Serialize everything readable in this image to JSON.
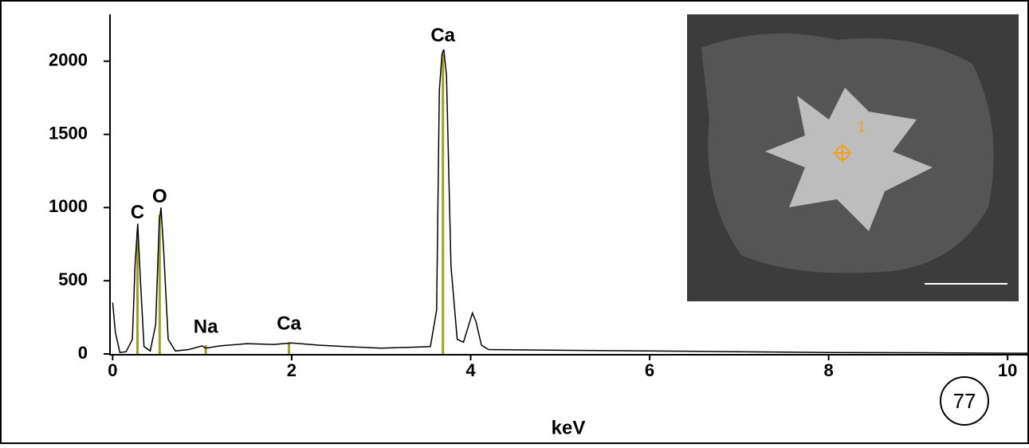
{
  "chart_data": {
    "type": "line",
    "x_label": "keV",
    "x": [
      0,
      0.03,
      0.08,
      0.15,
      0.22,
      0.25,
      0.28,
      0.31,
      0.35,
      0.42,
      0.48,
      0.52,
      0.54,
      0.57,
      0.62,
      0.7,
      0.85,
      1.0,
      1.04,
      1.2,
      1.5,
      1.8,
      2.0,
      2.3,
      2.6,
      3.0,
      3.3,
      3.55,
      3.62,
      3.65,
      3.68,
      3.7,
      3.73,
      3.78,
      3.85,
      3.92,
      3.98,
      4.02,
      4.06,
      4.12,
      4.2,
      5,
      6,
      7,
      8,
      9,
      10,
      10.23
    ],
    "values": [
      350,
      150,
      10,
      15,
      100,
      600,
      890,
      500,
      50,
      20,
      200,
      900,
      1000,
      700,
      100,
      20,
      30,
      55,
      40,
      55,
      70,
      65,
      75,
      60,
      50,
      40,
      45,
      50,
      300,
      1800,
      2050,
      2080,
      1900,
      600,
      100,
      80,
      200,
      280,
      220,
      60,
      30,
      25,
      20,
      15,
      10,
      8,
      5,
      5
    ],
    "color": "#000000",
    "xlim": [
      -0.03,
      10.23
    ],
    "ylim": [
      0,
      2320
    ],
    "xticks": [
      0,
      2,
      4,
      6,
      8,
      10
    ],
    "yticks": [
      0,
      500,
      1000,
      1500,
      2000
    ],
    "markers": [
      {
        "label": "C",
        "x": 0.277,
        "height": 840
      },
      {
        "label": "O",
        "x": 0.525,
        "height": 950
      },
      {
        "label": "Na",
        "x": 1.04,
        "height": 60
      },
      {
        "label": "Ca",
        "x": 1.97,
        "height": 80
      },
      {
        "label": "Ca",
        "x": 3.69,
        "height": 2050
      }
    ],
    "marker_color": "#a0a020",
    "inset_label": "1",
    "badge": "77"
  }
}
